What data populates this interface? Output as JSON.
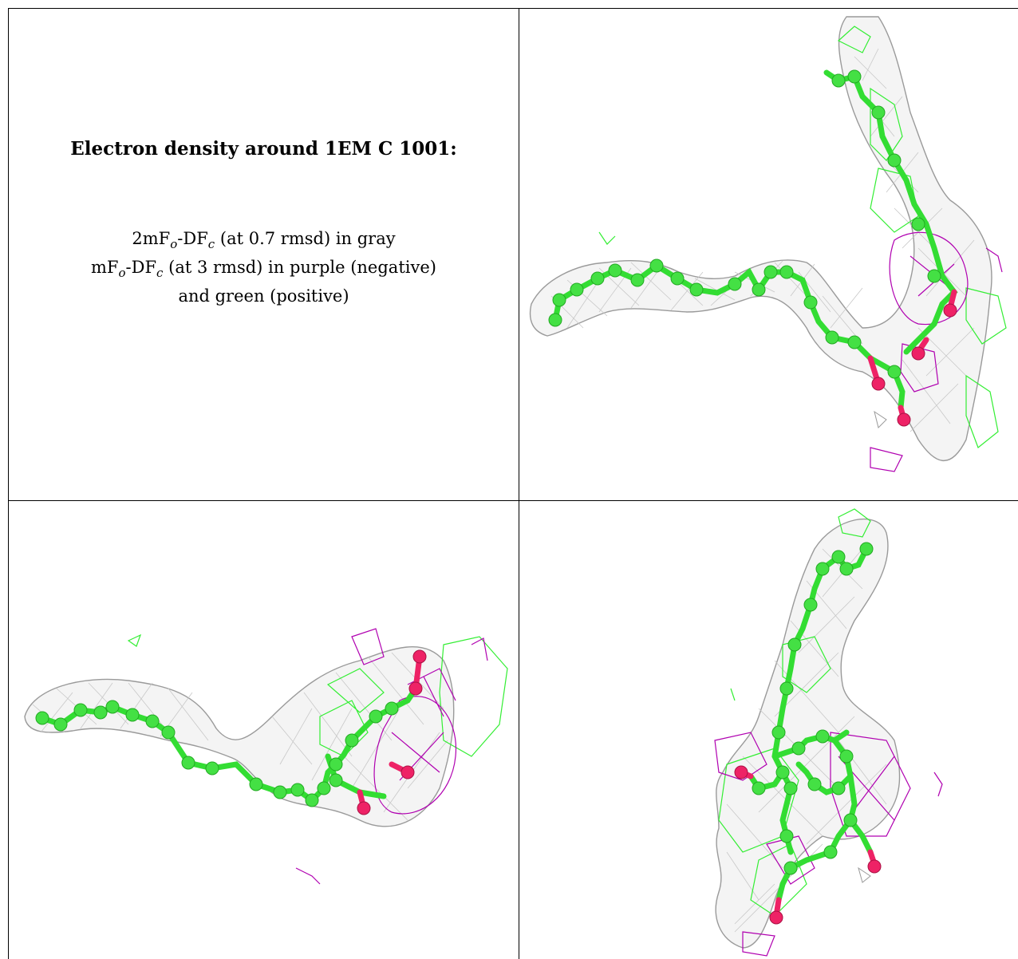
{
  "caption": {
    "title": "Electron density around 1EM C 1001:",
    "line1": {
      "a": "2mF",
      "sub1": "o",
      "b": "-DF",
      "sub2": "c",
      "rest": " (at 0.7 rmsd) in gray"
    },
    "line2": {
      "a": "mF",
      "sub1": "o",
      "b": "-DF",
      "sub2": "c",
      "rest": " (at 3 rmsd) in purple (negative)"
    },
    "line3": "and green (positive)"
  },
  "colors": {
    "twofofc_mesh": "#9a9a9a",
    "negative_mesh": "#b000b0",
    "positive_mesh": "#33ee33",
    "carbon": "#33dd33",
    "oxygen": "#ee2266"
  },
  "views": [
    {
      "id": "view-top-right",
      "icon": "density-map-view"
    },
    {
      "id": "view-bottom-left",
      "icon": "density-map-view"
    },
    {
      "id": "view-bottom-right",
      "icon": "density-map-view"
    }
  ]
}
